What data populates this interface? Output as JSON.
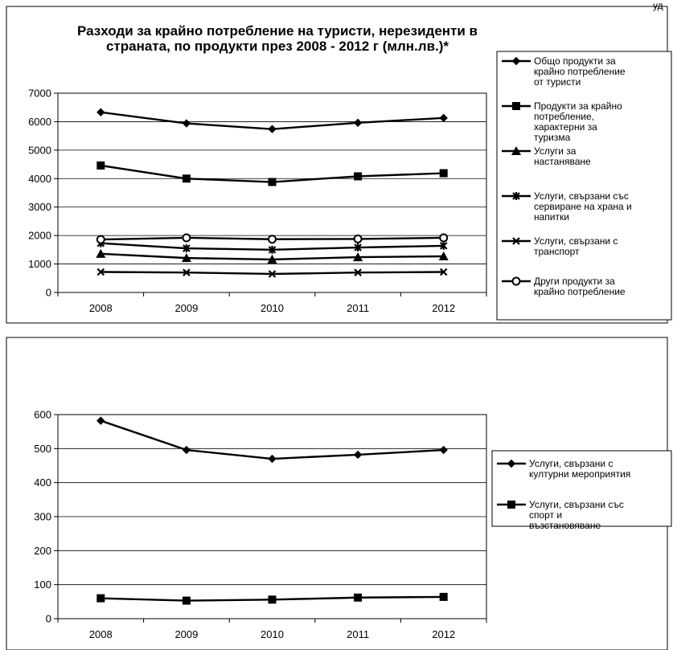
{
  "corner_text": "уд",
  "chart_data": [
    {
      "type": "line",
      "title_lines": [
        "Разходи за крайно потребление на туристи, нерезиденти в",
        "страната, по продукти през 2008 - 2012 г (млн.лв.)*"
      ],
      "categories": [
        "2008",
        "2009",
        "2010",
        "2011",
        "2012"
      ],
      "ylim": [
        0,
        7000
      ],
      "yticks": [
        "0",
        "1000",
        "2000",
        "3000",
        "4000",
        "5000",
        "6000",
        "7000"
      ],
      "ytick_values": [
        0,
        1000,
        2000,
        3000,
        4000,
        5000,
        6000,
        7000
      ],
      "grid": true,
      "legend_position": "right",
      "series": [
        {
          "name_lines": [
            "Общо продукти за",
            "крайно потребление",
            "от туристи"
          ],
          "marker": "diamond",
          "values": [
            6330,
            5940,
            5740,
            5960,
            6130
          ]
        },
        {
          "name_lines": [
            "Продукти за крайно",
            "потребление,",
            "характерни за",
            "туризма"
          ],
          "marker": "square",
          "values": [
            4460,
            4000,
            3880,
            4080,
            4190
          ]
        },
        {
          "name_lines": [
            "Услуги за",
            "настаняване"
          ],
          "marker": "triangle",
          "values": [
            1360,
            1210,
            1160,
            1240,
            1270
          ]
        },
        {
          "name_lines": [
            "Услуги, свързани със",
            "сервиране на храна и",
            "напитки"
          ],
          "marker": "star",
          "values": [
            1730,
            1550,
            1500,
            1580,
            1640
          ]
        },
        {
          "name_lines": [
            "Услуги, свързани с",
            "транспорт"
          ],
          "marker": "x",
          "values": [
            720,
            700,
            650,
            700,
            720
          ]
        },
        {
          "name_lines": [
            "Други продукти за",
            "крайно потребление"
          ],
          "marker": "circle",
          "values": [
            1860,
            1920,
            1870,
            1880,
            1920
          ]
        }
      ]
    },
    {
      "type": "line",
      "categories": [
        "2008",
        "2009",
        "2010",
        "2011",
        "2012"
      ],
      "ylim": [
        0,
        600
      ],
      "yticks": [
        "0",
        "100",
        "200",
        "300",
        "400",
        "500",
        "600"
      ],
      "ytick_values": [
        0,
        100,
        200,
        300,
        400,
        500,
        600
      ],
      "grid": true,
      "legend_position": "right",
      "series": [
        {
          "name_lines": [
            "Услуги, свързани с",
            "културни мероприятия"
          ],
          "marker": "diamond",
          "values": [
            582,
            496,
            470,
            482,
            496
          ]
        },
        {
          "name_lines": [
            "Услуги, свързани със",
            "спорт и",
            "възстановяване"
          ],
          "marker": "square",
          "values": [
            60,
            53,
            56,
            62,
            64
          ]
        }
      ]
    }
  ]
}
